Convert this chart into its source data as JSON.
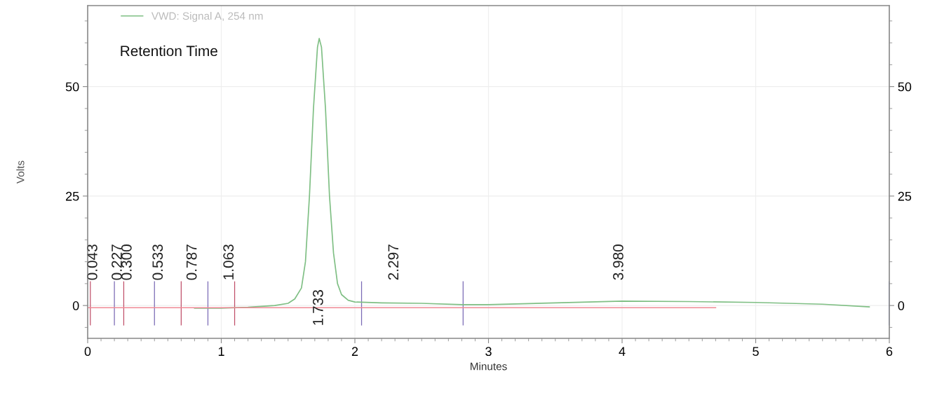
{
  "chart_data": {
    "type": "line",
    "xlabel": "Minutes",
    "ylabel": "Volts",
    "xlim": [
      0,
      6
    ],
    "xticks": [
      0,
      1,
      2,
      3,
      4,
      5,
      6
    ],
    "ylim": [
      -7.5,
      68.5
    ],
    "yticks": [
      0,
      25,
      50
    ],
    "y2lim": [
      -7.5,
      68.5
    ],
    "y2ticks": [
      0,
      25,
      50
    ],
    "grid": true,
    "legend": "top left",
    "marker": "none",
    "line_style": "solid",
    "series": [
      {
        "name": "VWD: Signal A, 254 nm",
        "color": "#7fbf84",
        "x": [
          0.8,
          1.0,
          1.2,
          1.4,
          1.5,
          1.55,
          1.6,
          1.63,
          1.66,
          1.69,
          1.72,
          1.733,
          1.75,
          1.78,
          1.81,
          1.84,
          1.87,
          1.9,
          1.95,
          2.0,
          2.2,
          2.5,
          2.8,
          3.0,
          3.5,
          4.0,
          4.5,
          5.0,
          5.5,
          5.85
        ],
        "values": [
          -0.6,
          -0.6,
          -0.4,
          0,
          0.5,
          1.5,
          4,
          10,
          25,
          45,
          59,
          61,
          59,
          45,
          25,
          12,
          5,
          2.5,
          1.2,
          0.8,
          0.6,
          0.5,
          0.2,
          0.2,
          0.6,
          1.0,
          0.9,
          0.7,
          0.3,
          -0.3
        ]
      },
      {
        "color": "#f08a96",
        "x": [
          0,
          4.7
        ],
        "values": [
          -0.5,
          -0.5
        ]
      }
    ],
    "ref_lines": [
      {
        "axis": "x",
        "value": 0.02,
        "color": "#c0506a"
      },
      {
        "axis": "x",
        "value": 0.2,
        "color": "#7a6ab5"
      },
      {
        "axis": "x",
        "value": 0.27,
        "color": "#c0506a"
      },
      {
        "axis": "x",
        "value": 0.5,
        "color": "#7a6ab5"
      },
      {
        "axis": "x",
        "value": 0.7,
        "color": "#c0506a"
      },
      {
        "axis": "x",
        "value": 0.9,
        "color": "#7a6ab5"
      },
      {
        "axis": "x",
        "value": 1.1,
        "color": "#c0506a"
      },
      {
        "axis": "x",
        "value": 2.05,
        "color": "#7a6ab5"
      },
      {
        "axis": "x",
        "value": 2.81,
        "color": "#7a6ab5"
      },
      {
        "axis": "x",
        "value": 6.0,
        "color": "#4a5ab5"
      }
    ],
    "annotations": [
      "Retention Time",
      {
        "text": "0.043",
        "x": 0.043,
        "y": -0.5
      },
      {
        "text": "0.227",
        "x": 0.227,
        "y": -0.5
      },
      {
        "text": "0.300",
        "x": 0.3,
        "y": -0.5
      },
      {
        "text": "0.533",
        "x": 0.533,
        "y": -0.5
      },
      {
        "text": "0.787",
        "x": 0.787,
        "y": -0.5
      },
      {
        "text": "1.063",
        "x": 1.063,
        "y": -0.5
      },
      {
        "text": "1.733",
        "x": 1.733,
        "y": -0.5
      },
      {
        "text": "2.297",
        "x": 2.297,
        "y": -0.5
      },
      {
        "text": "3.980",
        "x": 3.98,
        "y": -0.5
      }
    ]
  }
}
